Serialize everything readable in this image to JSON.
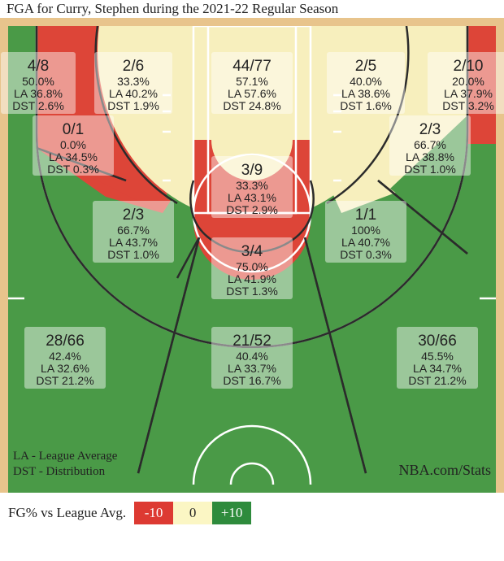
{
  "title": "FGA for Curry, Stephen during the 2021-22 Regular Season",
  "footer_left": [
    "LA - League Average",
    "DST - Distribution"
  ],
  "footer_right": "NBA.com/Stats",
  "legend": {
    "label": "FG% vs League Avg.",
    "items": [
      {
        "text": "-10",
        "color": "#dd3a32"
      },
      {
        "text": "0",
        "color": "#fbf6c4"
      },
      {
        "text": "+10",
        "color": "#2e8b3c"
      }
    ]
  },
  "colors": {
    "hot": "#4a9a47",
    "neutral": "#f7efbd",
    "cold": "#dd4538",
    "wood": "#e8c48c",
    "line": "#2b2b2b"
  },
  "chart_data": {
    "type": "table",
    "zones": [
      {
        "id": "left-corner-three",
        "made_att": "4/8",
        "fg_pct": "50.0%",
        "la": "LA 36.8%",
        "dst": "DST 2.6%",
        "fill": "hot"
      },
      {
        "id": "left-baseline-mid",
        "made_att": "2/6",
        "fg_pct": "33.3%",
        "la": "LA 40.2%",
        "dst": "DST 1.9%",
        "fill": "cold"
      },
      {
        "id": "restricted-area",
        "made_att": "44/77",
        "fg_pct": "57.1%",
        "la": "LA 57.6%",
        "dst": "DST 24.8%",
        "fill": "neutral"
      },
      {
        "id": "right-baseline-mid",
        "made_att": "2/5",
        "fg_pct": "40.0%",
        "la": "LA 38.6%",
        "dst": "DST 1.6%",
        "fill": "neutral"
      },
      {
        "id": "right-corner-three",
        "made_att": "2/10",
        "fg_pct": "20.0%",
        "la": "LA 37.9%",
        "dst": "DST 3.2%",
        "fill": "cold"
      },
      {
        "id": "left-wing-mid-inner",
        "made_att": "0/1",
        "fg_pct": "0.0%",
        "la": "LA 34.5%",
        "dst": "DST 0.3%",
        "fill": "cold"
      },
      {
        "id": "right-wing-mid-inner",
        "made_att": "2/3",
        "fg_pct": "66.7%",
        "la": "LA 38.8%",
        "dst": "DST 1.0%",
        "fill": "hot"
      },
      {
        "id": "in-the-paint",
        "made_att": "3/9",
        "fg_pct": "33.3%",
        "la": "LA 43.1%",
        "dst": "DST 2.9%",
        "fill": "cold"
      },
      {
        "id": "left-elbow-mid",
        "made_att": "2/3",
        "fg_pct": "66.7%",
        "la": "LA 43.7%",
        "dst": "DST 1.0%",
        "fill": "hot"
      },
      {
        "id": "right-elbow-mid",
        "made_att": "1/1",
        "fg_pct": "100%",
        "la": "LA 40.7%",
        "dst": "DST 0.3%",
        "fill": "hot"
      },
      {
        "id": "top-key-mid",
        "made_att": "3/4",
        "fg_pct": "75.0%",
        "la": "LA 41.9%",
        "dst": "DST 1.3%",
        "fill": "hot"
      },
      {
        "id": "left-wing-three",
        "made_att": "28/66",
        "fg_pct": "42.4%",
        "la": "LA 32.6%",
        "dst": "DST 21.2%",
        "fill": "hot"
      },
      {
        "id": "top-key-three",
        "made_att": "21/52",
        "fg_pct": "40.4%",
        "la": "LA 33.7%",
        "dst": "DST 16.7%",
        "fill": "hot"
      },
      {
        "id": "right-wing-three",
        "made_att": "30/66",
        "fg_pct": "45.5%",
        "la": "LA 34.7%",
        "dst": "DST 21.2%",
        "fill": "hot"
      }
    ]
  }
}
